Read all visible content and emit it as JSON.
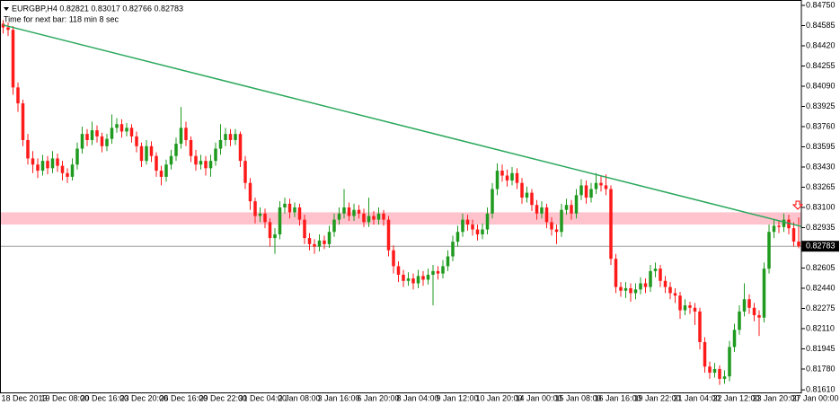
{
  "chart_data": {
    "type": "candlestick",
    "symbol_info": "EURGBP,H4 0.82821 0.83017 0.82766 0.82783",
    "timer": "Time for next bar: 118 min 8 sec",
    "bid": 0.82783,
    "up_color": "#1f9a1f",
    "down_color": "#ff1a1a",
    "zone": [
      0.8296,
      0.8306
    ],
    "zone_color": "#ffc0cb",
    "trendline": {
      "x": [
        0,
        163
      ],
      "y": [
        0.8459,
        0.8293
      ],
      "color": "#2aa85c"
    },
    "ylim": [
      0.81589,
      0.84794
    ],
    "yticks": [
      {
        "value": 0.8475,
        "label": "0.84750"
      },
      0.84585,
      {
        "value": 0.8442,
        "label": "0.84420"
      },
      0.84255,
      {
        "value": 0.8409,
        "label": "0.84090"
      },
      0.83925,
      {
        "value": 0.8376,
        "label": "0.83760"
      },
      0.83595,
      {
        "value": 0.8343,
        "label": "0.83430"
      },
      0.83265,
      {
        "value": 0.831,
        "label": "0.83100"
      },
      0.82935,
      0.82605,
      {
        "value": 0.8244,
        "label": "0.82440"
      },
      0.82275,
      {
        "value": 0.8211,
        "label": "0.82110"
      },
      0.81945,
      {
        "value": 0.8178,
        "label": "0.81780"
      },
      {
        "value": 0.8161,
        "label": "0.81610"
      }
    ],
    "categories": [
      "18 Dec 2013",
      null,
      null,
      null,
      null,
      null,
      null,
      null,
      "19 Dec 08:00",
      null,
      null,
      null,
      null,
      null,
      null,
      null,
      "20 Dec 16:00",
      null,
      null,
      null,
      null,
      null,
      null,
      null,
      "23 Dec 20:00",
      null,
      null,
      null,
      null,
      null,
      null,
      null,
      "26 Dec 16:00",
      null,
      null,
      null,
      null,
      null,
      null,
      null,
      "29 Dec 22:00",
      null,
      null,
      null,
      null,
      null,
      null,
      null,
      "31 Dec 04:00",
      null,
      null,
      null,
      null,
      null,
      null,
      null,
      "2 Jan 08:00",
      null,
      null,
      null,
      null,
      null,
      null,
      null,
      "3 Jan 16:00",
      null,
      null,
      null,
      null,
      null,
      null,
      null,
      "6 Jan 20:00",
      null,
      null,
      null,
      null,
      null,
      null,
      null,
      "8 Jan 04:00",
      null,
      null,
      null,
      null,
      null,
      null,
      null,
      "9 Jan 12:00",
      null,
      null,
      null,
      null,
      null,
      null,
      null,
      "10 Jan 20:00",
      null,
      null,
      null,
      null,
      null,
      null,
      null,
      "14 Jan 00:00",
      null,
      null,
      null,
      null,
      null,
      null,
      null,
      "15 Jan 08:00",
      null,
      null,
      null,
      null,
      null,
      null,
      null,
      "16 Jan 16:00",
      null,
      null,
      null,
      null,
      null,
      null,
      null,
      "19 Jan 22:00",
      null,
      null,
      null,
      null,
      null,
      null,
      null,
      "21 Jan 04:00",
      null,
      null,
      null,
      null,
      null,
      null,
      null,
      "22 Jan 12:00",
      null,
      null,
      null,
      null,
      null,
      null,
      null,
      "23 Jan 20:00",
      null,
      null,
      null,
      null,
      null,
      null,
      null,
      "27 Jan 00:00",
      null
    ],
    "open": [
      0.846,
      0.8457,
      0.8455,
      0.8408,
      0.8395,
      0.8365,
      0.835,
      0.8345,
      0.834,
      0.8348,
      0.8342,
      0.835,
      0.8344,
      0.8338,
      0.8335,
      0.8345,
      0.8358,
      0.837,
      0.8365,
      0.8373,
      0.8368,
      0.836,
      0.8366,
      0.8375,
      0.8378,
      0.8372,
      0.8375,
      0.8368,
      0.836,
      0.8348,
      0.836,
      0.8352,
      0.834,
      0.8335,
      0.8345,
      0.8352,
      0.8362,
      0.8375,
      0.8365,
      0.8352,
      0.8345,
      0.8348,
      0.8342,
      0.8348,
      0.8358,
      0.8365,
      0.837,
      0.8365,
      0.837,
      0.8348,
      0.833,
      0.8315,
      0.8303,
      0.8305,
      0.8298,
      0.8285,
      0.8288,
      0.831,
      0.8313,
      0.8306,
      0.831,
      0.83,
      0.8285,
      0.828,
      0.8278,
      0.8283,
      0.828,
      0.829,
      0.83,
      0.8305,
      0.831,
      0.8303,
      0.8308,
      0.8305,
      0.8298,
      0.8303,
      0.83,
      0.8305,
      0.83,
      0.8275,
      0.8262,
      0.8255,
      0.825,
      0.8252,
      0.8248,
      0.8254,
      0.8251,
      0.8255,
      0.8258,
      0.8256,
      0.8262,
      0.827,
      0.8282,
      0.829,
      0.83,
      0.8296,
      0.8292,
      0.8288,
      0.8292,
      0.8305,
      0.8325,
      0.834,
      0.8336,
      0.8332,
      0.8338,
      0.833,
      0.8318,
      0.8322,
      0.8312,
      0.8305,
      0.831,
      0.8298,
      0.8292,
      0.829,
      0.8308,
      0.8312,
      0.8305,
      0.832,
      0.8328,
      0.8318,
      0.8325,
      0.833,
      0.8328,
      0.8325,
      0.8268,
      0.8245,
      0.8242,
      0.8244,
      0.824,
      0.8243,
      0.8248,
      0.8245,
      0.8258,
      0.826,
      0.825,
      0.8245,
      0.824,
      0.8238,
      0.8226,
      0.823,
      0.8228,
      0.8225,
      0.82,
      0.818,
      0.8175,
      0.8178,
      0.817,
      0.8172,
      0.8196,
      0.821,
      0.8225,
      0.8235,
      0.8228,
      0.8222,
      0.822,
      0.826,
      0.829,
      0.8295,
      0.8294,
      0.83,
      0.8293,
      0.82821
    ],
    "high": [
      0.8463,
      0.8461,
      0.8458,
      0.8412,
      0.8398,
      0.837,
      0.8356,
      0.835,
      0.8353,
      0.8352,
      0.8356,
      0.8354,
      0.8348,
      0.8342,
      0.835,
      0.8363,
      0.8376,
      0.8374,
      0.838,
      0.8377,
      0.8371,
      0.837,
      0.8386,
      0.8383,
      0.8382,
      0.8379,
      0.8378,
      0.8372,
      0.8363,
      0.8365,
      0.8364,
      0.8355,
      0.8344,
      0.8349,
      0.8357,
      0.8367,
      0.8392,
      0.838,
      0.8368,
      0.8357,
      0.8353,
      0.8352,
      0.8353,
      0.8363,
      0.8378,
      0.8375,
      0.8374,
      0.8374,
      0.8372,
      0.8352,
      0.8334,
      0.8318,
      0.831,
      0.8309,
      0.8301,
      0.8293,
      0.8315,
      0.8318,
      0.8317,
      0.8314,
      0.8313,
      0.8304,
      0.8289,
      0.8284,
      0.8288,
      0.8287,
      0.8295,
      0.8305,
      0.831,
      0.8325,
      0.8314,
      0.8313,
      0.8312,
      0.8309,
      0.8318,
      0.8307,
      0.831,
      0.8308,
      0.8303,
      0.8279,
      0.8266,
      0.8259,
      0.8257,
      0.8256,
      0.8259,
      0.8258,
      0.826,
      0.8263,
      0.8262,
      0.8267,
      0.8275,
      0.8287,
      0.8295,
      0.8305,
      0.8304,
      0.83,
      0.8296,
      0.8297,
      0.831,
      0.833,
      0.8346,
      0.8345,
      0.8341,
      0.8343,
      0.8342,
      0.8334,
      0.8327,
      0.8325,
      0.8316,
      0.8315,
      0.8313,
      0.8302,
      0.8296,
      0.8313,
      0.8317,
      0.8316,
      0.8325,
      0.8333,
      0.8332,
      0.833,
      0.8338,
      0.8336,
      0.8337,
      0.8328,
      0.8272,
      0.8249,
      0.8249,
      0.8248,
      0.8248,
      0.8253,
      0.8252,
      0.8263,
      0.8265,
      0.8263,
      0.8254,
      0.8249,
      0.8244,
      0.8241,
      0.8235,
      0.8233,
      0.8232,
      0.8228,
      0.8204,
      0.8184,
      0.8183,
      0.8181,
      0.8177,
      0.8201,
      0.8215,
      0.823,
      0.8248,
      0.8239,
      0.8232,
      0.8226,
      0.8265,
      0.8296,
      0.83,
      0.8299,
      0.8305,
      0.8304,
      0.8298,
      0.83017
    ],
    "low": [
      0.8452,
      0.845,
      0.8402,
      0.8388,
      0.836,
      0.8345,
      0.8338,
      0.8334,
      0.8336,
      0.8337,
      0.8338,
      0.8339,
      0.8332,
      0.833,
      0.8332,
      0.8341,
      0.8354,
      0.836,
      0.8361,
      0.8363,
      0.8355,
      0.8356,
      0.8362,
      0.8371,
      0.8367,
      0.8368,
      0.8363,
      0.8355,
      0.8343,
      0.8345,
      0.8347,
      0.8335,
      0.8328,
      0.8331,
      0.8341,
      0.8348,
      0.8358,
      0.836,
      0.8347,
      0.834,
      0.8341,
      0.8336,
      0.8335,
      0.8344,
      0.8353,
      0.836,
      0.836,
      0.8361,
      0.8343,
      0.8325,
      0.8308,
      0.8297,
      0.8298,
      0.8293,
      0.8278,
      0.8272,
      0.8284,
      0.8305,
      0.8301,
      0.8302,
      0.8295,
      0.828,
      0.8275,
      0.8272,
      0.8274,
      0.8276,
      0.8277,
      0.8286,
      0.8296,
      0.8301,
      0.8299,
      0.8299,
      0.8301,
      0.8294,
      0.8294,
      0.8296,
      0.8296,
      0.8295,
      0.827,
      0.8256,
      0.8249,
      0.8245,
      0.8246,
      0.8243,
      0.8244,
      0.8246,
      0.8247,
      0.823,
      0.8251,
      0.8252,
      0.8258,
      0.8266,
      0.8278,
      0.8286,
      0.8291,
      0.8287,
      0.8283,
      0.8284,
      0.8288,
      0.8301,
      0.832,
      0.8331,
      0.8327,
      0.8328,
      0.8325,
      0.8313,
      0.8314,
      0.8307,
      0.83,
      0.8301,
      0.8293,
      0.8287,
      0.828,
      0.8286,
      0.8304,
      0.83,
      0.8301,
      0.8316,
      0.8313,
      0.8314,
      0.8321,
      0.8323,
      0.832,
      0.8263,
      0.824,
      0.8237,
      0.8236,
      0.8233,
      0.8235,
      0.8239,
      0.824,
      0.8241,
      0.8253,
      0.8245,
      0.824,
      0.8235,
      0.8232,
      0.8219,
      0.8222,
      0.8223,
      0.8214,
      0.8194,
      0.8175,
      0.817,
      0.8171,
      0.8165,
      0.8166,
      0.8168,
      0.8192,
      0.8206,
      0.8221,
      0.8223,
      0.8217,
      0.8205,
      0.8216,
      0.8256,
      0.8285,
      0.8289,
      0.829,
      0.8288,
      0.8278,
      0.82766
    ],
    "close": [
      0.8457,
      0.8455,
      0.8408,
      0.8395,
      0.8365,
      0.835,
      0.8345,
      0.834,
      0.8348,
      0.8342,
      0.835,
      0.8344,
      0.8338,
      0.8335,
      0.8345,
      0.8358,
      0.837,
      0.8365,
      0.8373,
      0.8368,
      0.836,
      0.8366,
      0.8375,
      0.8378,
      0.8372,
      0.8375,
      0.8368,
      0.836,
      0.8348,
      0.836,
      0.8352,
      0.834,
      0.8335,
      0.8345,
      0.8352,
      0.8362,
      0.8375,
      0.8365,
      0.8352,
      0.8345,
      0.8348,
      0.8342,
      0.8348,
      0.8358,
      0.8365,
      0.837,
      0.8365,
      0.837,
      0.8348,
      0.833,
      0.8315,
      0.8303,
      0.8305,
      0.8298,
      0.8285,
      0.8288,
      0.831,
      0.8313,
      0.8306,
      0.831,
      0.83,
      0.8285,
      0.828,
      0.8278,
      0.8283,
      0.828,
      0.829,
      0.83,
      0.8305,
      0.831,
      0.8303,
      0.8308,
      0.8305,
      0.8298,
      0.8303,
      0.83,
      0.8305,
      0.83,
      0.8275,
      0.8262,
      0.8255,
      0.825,
      0.8252,
      0.8248,
      0.8254,
      0.8251,
      0.8255,
      0.8258,
      0.8256,
      0.8262,
      0.827,
      0.8282,
      0.829,
      0.83,
      0.8296,
      0.8292,
      0.8288,
      0.8292,
      0.8305,
      0.8325,
      0.834,
      0.8336,
      0.8332,
      0.8338,
      0.833,
      0.8318,
      0.8322,
      0.8312,
      0.8305,
      0.831,
      0.8298,
      0.8292,
      0.829,
      0.8308,
      0.8312,
      0.8305,
      0.832,
      0.8328,
      0.8318,
      0.8325,
      0.833,
      0.8328,
      0.8325,
      0.8268,
      0.8245,
      0.8242,
      0.8244,
      0.824,
      0.8243,
      0.8248,
      0.8245,
      0.8258,
      0.826,
      0.825,
      0.8245,
      0.824,
      0.8238,
      0.8226,
      0.823,
      0.8228,
      0.8225,
      0.82,
      0.818,
      0.8175,
      0.8178,
      0.817,
      0.8172,
      0.8196,
      0.821,
      0.8225,
      0.8235,
      0.8228,
      0.8222,
      0.822,
      0.826,
      0.829,
      0.8295,
      0.8294,
      0.83,
      0.8293,
      0.82821,
      0.82783
    ]
  }
}
